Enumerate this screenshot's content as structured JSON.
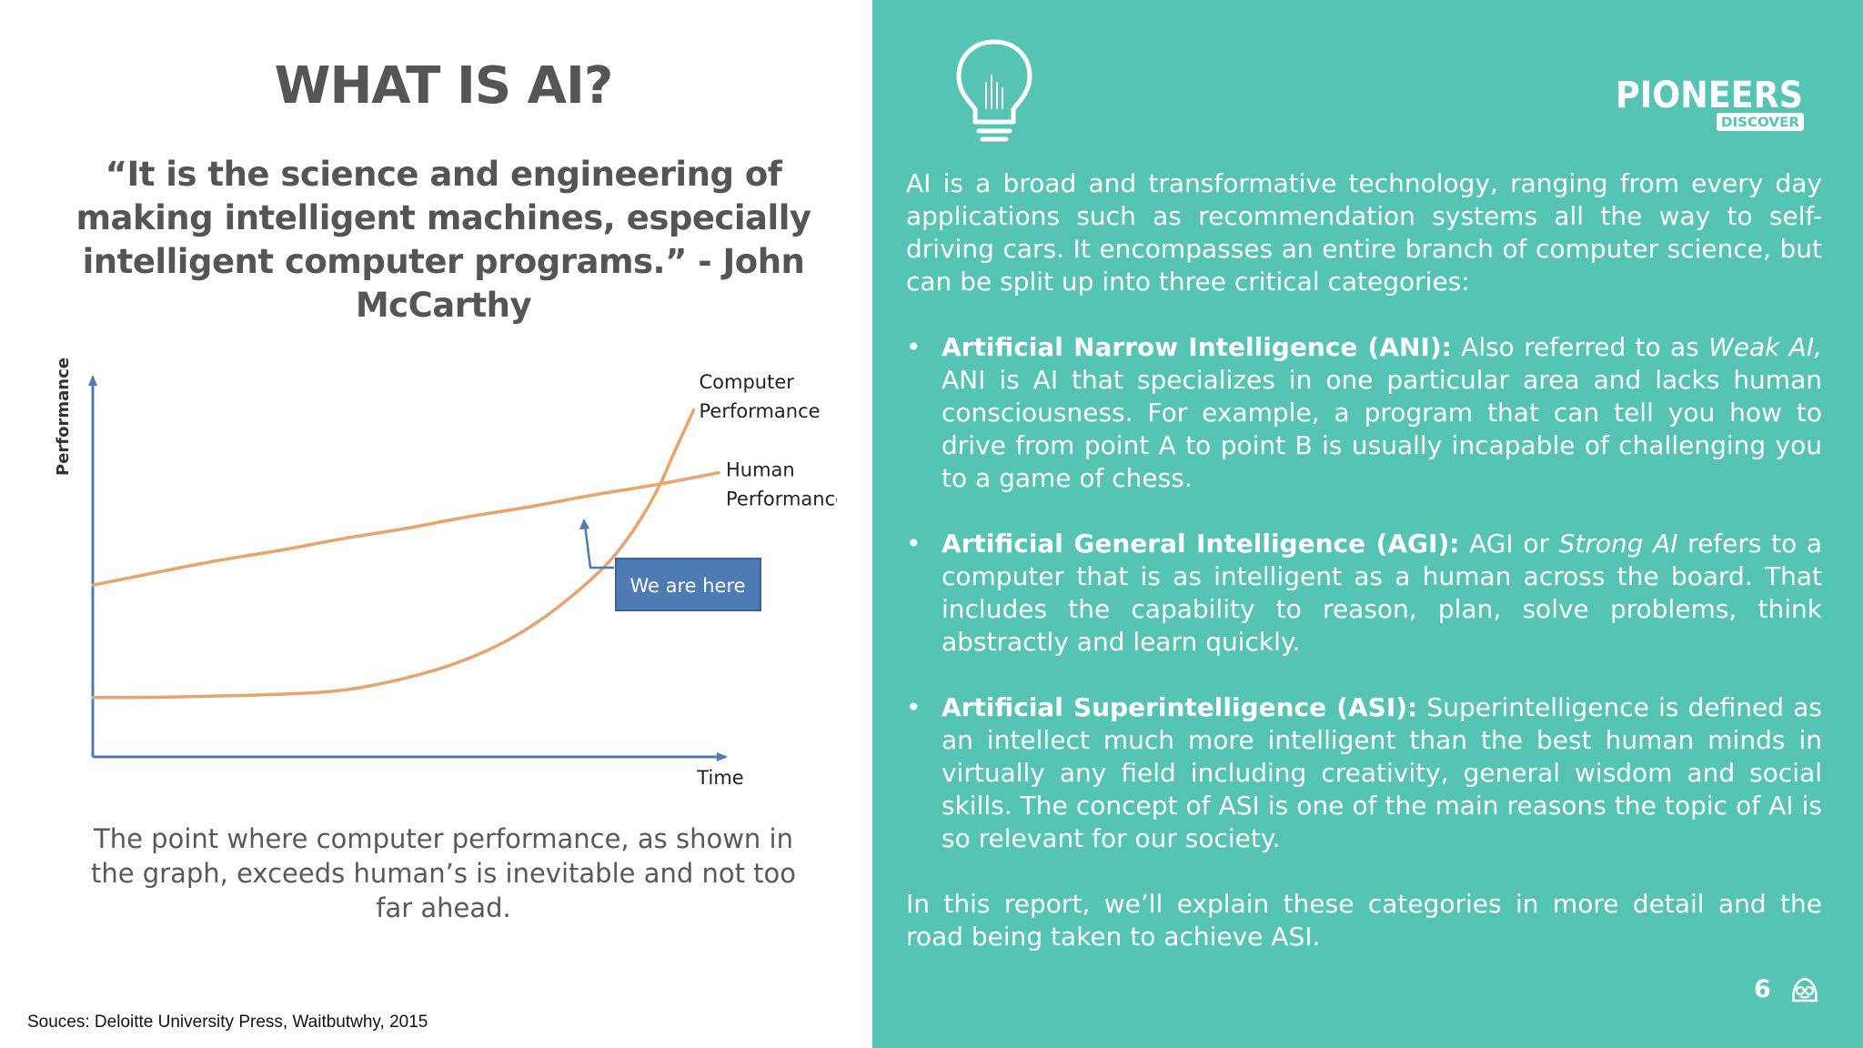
{
  "left": {
    "title": "WHAT IS AI?",
    "quote": "“It is the science and engineering of making intelligent machines, especially intelligent computer programs.” - John McCarthy",
    "caption": "The point where computer performance, as shown in the graph, exceeds human’s is inevitable and not too far ahead.",
    "sources": "Souces: Deloitte University Press, Waitbutwhy, 2015"
  },
  "chart_data": {
    "type": "line",
    "ylabel": "Performance",
    "xlabel": "Time",
    "annotation": "We are here",
    "series": [
      {
        "name": "Human Performance",
        "label_lines": [
          "Human",
          "Performance"
        ],
        "color": "#e8a46c",
        "points": [
          [
            0,
            0.55
          ],
          [
            0.1,
            0.59
          ],
          [
            0.2,
            0.63
          ],
          [
            0.3,
            0.66
          ],
          [
            0.4,
            0.7
          ],
          [
            0.5,
            0.73
          ],
          [
            0.6,
            0.77
          ],
          [
            0.7,
            0.8
          ],
          [
            0.8,
            0.84
          ],
          [
            0.9,
            0.87
          ],
          [
            1.0,
            0.91
          ]
        ]
      },
      {
        "name": "Computer Performance",
        "label_lines": [
          "Computer",
          "Performance"
        ],
        "color": "#e8a46c",
        "points": [
          [
            0,
            0.19
          ],
          [
            0.1,
            0.19
          ],
          [
            0.2,
            0.195
          ],
          [
            0.3,
            0.2
          ],
          [
            0.4,
            0.21
          ],
          [
            0.5,
            0.25
          ],
          [
            0.6,
            0.31
          ],
          [
            0.7,
            0.41
          ],
          [
            0.8,
            0.57
          ],
          [
            0.85,
            0.68
          ],
          [
            0.9,
            0.84
          ],
          [
            0.93,
            0.98
          ],
          [
            0.96,
            1.11
          ]
        ]
      }
    ],
    "xlim": [
      0,
      1.0
    ],
    "ylim": [
      0,
      1.2
    ],
    "grid": false
  },
  "right": {
    "intro": "AI is a broad and transformative technology, ranging from every day applications such as recommendation systems all the way to self-driving cars. It encompasses an entire branch of computer science, but can be split up into three critical categories:",
    "bullets": [
      {
        "term": "Artificial Narrow Intelligence (ANI):",
        "pre": " Also referred to as ",
        "em": "Weak AI,",
        "post": " ANI is AI that specializes in one particular area and lacks human consciousness. For example, a program that can tell you how to drive from point A to point B is usually incapable of challenging you to a game of chess."
      },
      {
        "term": "Artificial General Intelligence (AGI):",
        "pre": " AGI or ",
        "em": "Strong AI",
        "post": " refers to a computer that is as intelligent as a human across the board. That includes the capability to reason, plan, solve problems, think abstractly and learn quickly."
      },
      {
        "term": "Artificial Superintelligence (ASI):",
        "pre": " Superintelligence is defined as an intellect much more intelligent than the best human minds in virtually any field including creativity, general wisdom and social skills. The concept of ASI is one of the main reasons the topic of AI is so relevant for our society.",
        "em": "",
        "post": ""
      }
    ],
    "outro": "In this report, we’ll explain these categories in more detail and the road being taken to achieve ASI.",
    "bullet_symbol": "•",
    "page_number": "6",
    "logo_main": "PIONEERS",
    "logo_sub": "DISCOVER"
  },
  "colors": {
    "accent_teal": "#55c4b4",
    "title_gray": "#555555",
    "curve_orange": "#e8a46c",
    "axis_blue": "#4f7bb5",
    "callout_blue": "#4f7bb5"
  },
  "icons": {
    "bulb": "lightbulb-icon",
    "footer": "pioneers-mascot-icon"
  }
}
